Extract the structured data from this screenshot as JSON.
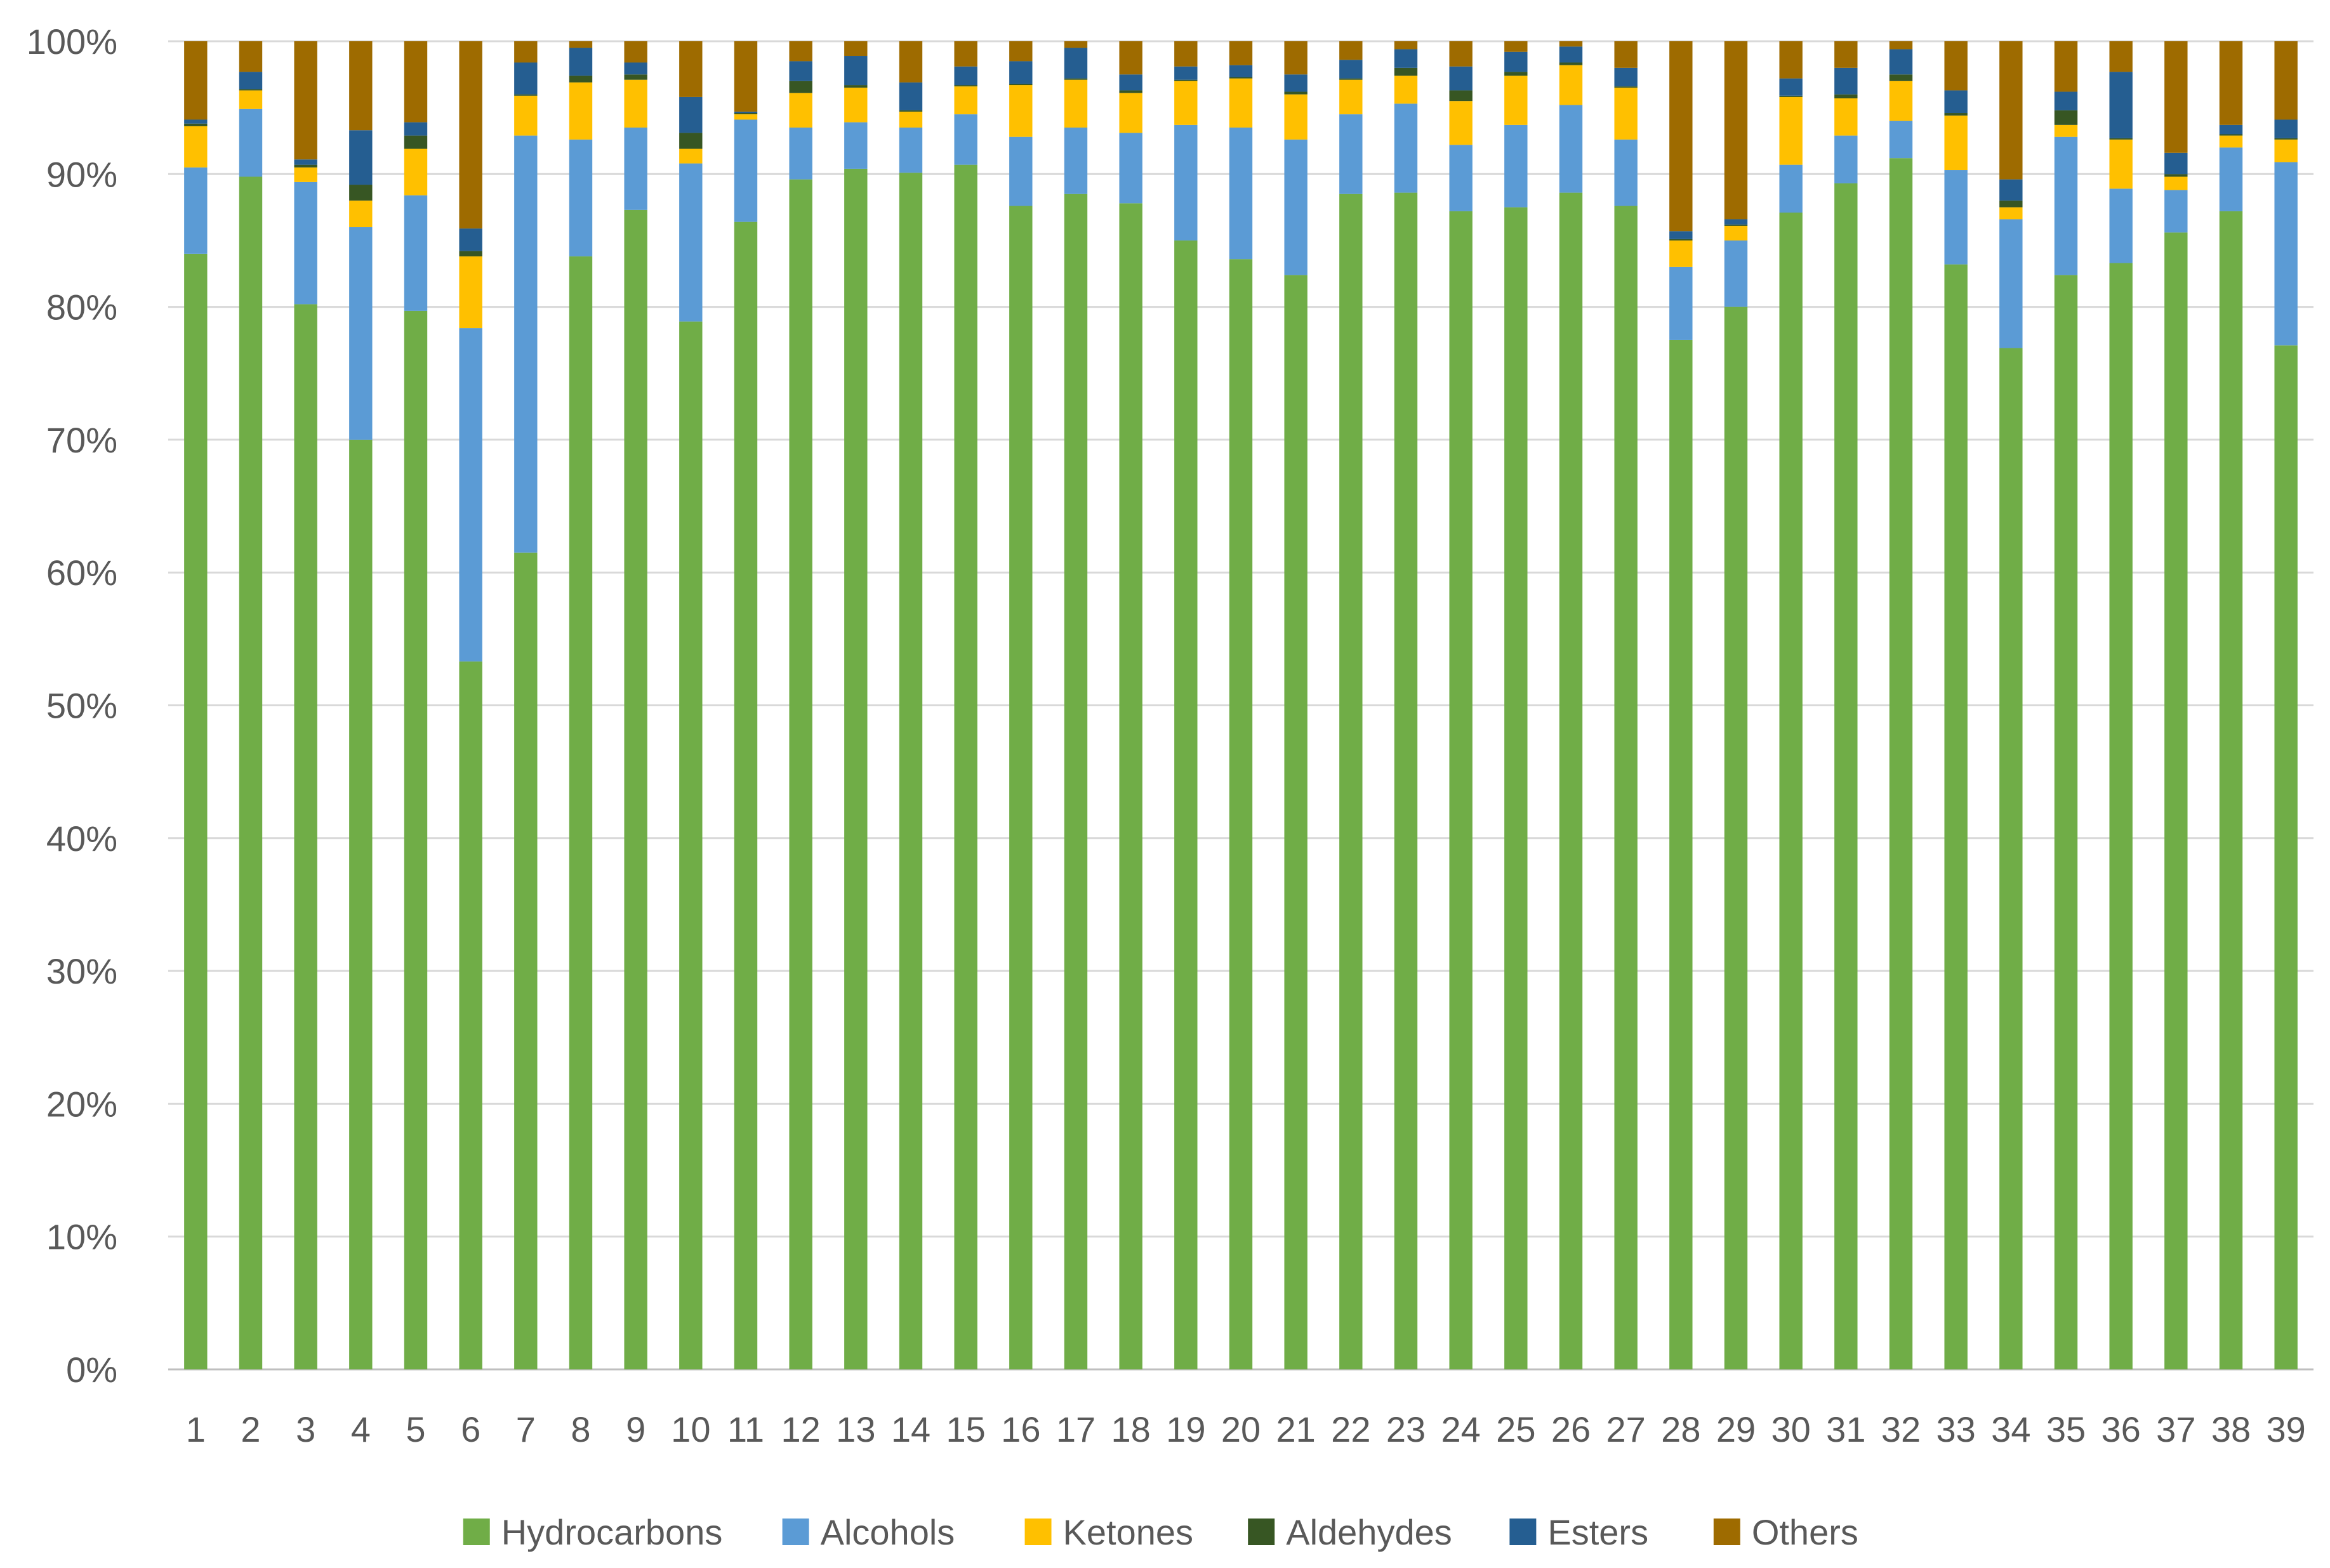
{
  "chart_data": {
    "type": "bar",
    "stacked": true,
    "percent_stacked": true,
    "categories": [
      "1",
      "2",
      "3",
      "4",
      "5",
      "6",
      "7",
      "8",
      "9",
      "10",
      "11",
      "12",
      "13",
      "14",
      "15",
      "16",
      "17",
      "18",
      "19",
      "20",
      "21",
      "22",
      "23",
      "24",
      "25",
      "26",
      "27",
      "28",
      "29",
      "30",
      "31",
      "32",
      "33",
      "34",
      "35",
      "36",
      "37",
      "38",
      "39"
    ],
    "y_ticks": [
      "0%",
      "10%",
      "20%",
      "30%",
      "40%",
      "50%",
      "60%",
      "70%",
      "80%",
      "90%",
      "100%"
    ],
    "ylim": [
      0,
      100
    ],
    "grid": true,
    "legend_position": "bottom",
    "series": [
      {
        "name": "Hydrocarbons",
        "color": "#70AD47",
        "values": [
          84.0,
          89.8,
          80.2,
          70.0,
          79.7,
          53.3,
          61.5,
          83.8,
          87.3,
          78.9,
          86.4,
          89.6,
          90.4,
          90.1,
          90.7,
          87.6,
          88.5,
          87.8,
          85.0,
          83.6,
          82.4,
          88.5,
          88.6,
          87.2,
          87.5,
          88.6,
          87.6,
          77.5,
          80.0,
          87.1,
          89.3,
          91.2,
          83.2,
          76.9,
          82.4,
          83.3,
          85.6,
          87.2,
          77.1
        ]
      },
      {
        "name": "Alcohols",
        "color": "#5B9BD5",
        "values": [
          6.5,
          5.1,
          9.2,
          16.0,
          8.7,
          25.1,
          31.4,
          8.8,
          6.2,
          11.9,
          7.7,
          3.9,
          3.5,
          3.4,
          3.8,
          5.2,
          5.0,
          5.3,
          8.7,
          9.9,
          10.2,
          6.0,
          6.7,
          5.0,
          6.2,
          6.6,
          5.0,
          5.5,
          5.0,
          3.6,
          3.6,
          2.8,
          7.1,
          9.7,
          10.4,
          5.6,
          3.2,
          4.8,
          13.8
        ]
      },
      {
        "name": "Ketones",
        "color": "#FFC000",
        "values": [
          3.1,
          1.4,
          1.1,
          2.0,
          3.5,
          5.4,
          3.0,
          4.3,
          3.6,
          1.1,
          0.4,
          2.6,
          2.6,
          1.2,
          2.1,
          3.9,
          3.6,
          3.0,
          3.3,
          3.7,
          3.4,
          2.6,
          2.1,
          3.3,
          3.7,
          3.0,
          3.9,
          2.0,
          1.1,
          5.1,
          2.8,
          3.0,
          4.1,
          0.9,
          0.9,
          3.7,
          1.0,
          0.9,
          1.7
        ]
      },
      {
        "name": "Aldehydes",
        "color": "#375623",
        "values": [
          0.2,
          0.1,
          0.2,
          1.2,
          1.0,
          0.4,
          0.1,
          0.5,
          0.4,
          1.2,
          0.1,
          0.9,
          0.2,
          0.1,
          0.1,
          0.1,
          0.1,
          0.2,
          0.1,
          0.1,
          0.2,
          0.1,
          0.6,
          0.8,
          0.3,
          0.2,
          0.1,
          0.1,
          0.1,
          0.1,
          0.3,
          0.5,
          0.2,
          0.5,
          1.1,
          0.1,
          0.2,
          0.1,
          0.1
        ]
      },
      {
        "name": "Esters",
        "color": "#255E91",
        "values": [
          0.3,
          1.3,
          0.4,
          4.1,
          1.0,
          1.7,
          2.4,
          2.1,
          0.9,
          2.7,
          0.1,
          1.5,
          2.2,
          2.1,
          1.4,
          1.7,
          2.3,
          1.2,
          1.0,
          0.9,
          1.3,
          1.4,
          1.4,
          1.8,
          1.5,
          1.2,
          1.4,
          0.6,
          0.4,
          1.3,
          2.0,
          1.9,
          1.7,
          1.6,
          1.4,
          5.0,
          1.6,
          0.7,
          1.4
        ]
      },
      {
        "name": "Others",
        "color": "#9E6B00",
        "values": [
          5.9,
          2.3,
          8.9,
          6.7,
          6.1,
          14.1,
          1.6,
          0.5,
          1.6,
          4.2,
          5.3,
          1.5,
          1.1,
          3.1,
          1.9,
          1.5,
          0.5,
          2.5,
          1.9,
          1.8,
          2.5,
          1.4,
          0.6,
          1.9,
          0.8,
          0.4,
          2.0,
          14.3,
          13.4,
          2.8,
          2.0,
          0.6,
          3.7,
          10.4,
          3.8,
          2.3,
          8.4,
          6.3,
          5.9
        ]
      }
    ]
  }
}
